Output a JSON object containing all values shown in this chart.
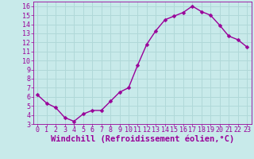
{
  "x": [
    0,
    1,
    2,
    3,
    4,
    5,
    6,
    7,
    8,
    9,
    10,
    11,
    12,
    13,
    14,
    15,
    16,
    17,
    18,
    19,
    20,
    21,
    22,
    23
  ],
  "y": [
    6.2,
    5.3,
    4.8,
    3.7,
    3.3,
    4.1,
    4.5,
    4.5,
    5.5,
    6.5,
    7.0,
    9.5,
    11.8,
    13.3,
    14.5,
    14.9,
    15.3,
    16.0,
    15.4,
    15.0,
    13.9,
    12.7,
    12.3,
    11.5
  ],
  "line_color": "#990099",
  "marker": "D",
  "marker_size": 2.5,
  "bg_color": "#c8eaea",
  "grid_color": "#b0d8d8",
  "xlabel": "Windchill (Refroidissement éolien,°C)",
  "ylabel": "",
  "xlim": [
    -0.5,
    23.5
  ],
  "ylim": [
    3,
    16.5
  ],
  "xticks": [
    0,
    1,
    2,
    3,
    4,
    5,
    6,
    7,
    8,
    9,
    10,
    11,
    12,
    13,
    14,
    15,
    16,
    17,
    18,
    19,
    20,
    21,
    22,
    23
  ],
  "yticks": [
    3,
    4,
    5,
    6,
    7,
    8,
    9,
    10,
    11,
    12,
    13,
    14,
    15,
    16
  ],
  "tick_fontsize": 6,
  "xlabel_fontsize": 7.5,
  "label_color": "#990099",
  "spine_color": "#888888"
}
